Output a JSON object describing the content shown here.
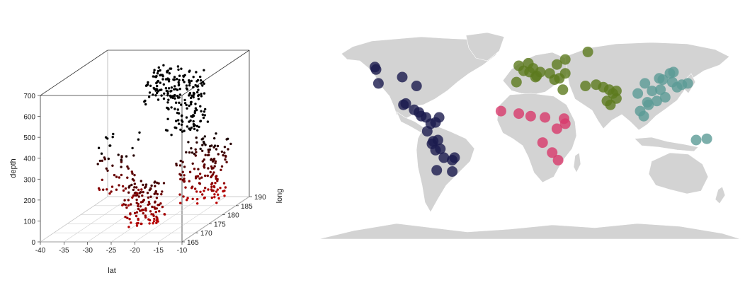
{
  "chart_data": [
    {
      "type": "scatter",
      "projection": "3d",
      "xlabel": "lat",
      "ylabel": "long",
      "zlabel": "depth",
      "xlim": [
        -40,
        -10
      ],
      "ylim": [
        165,
        190
      ],
      "zlim": [
        0,
        700
      ],
      "x_ticks": [
        "-40",
        "-35",
        "-30",
        "-25",
        "-20",
        "-15",
        "-10"
      ],
      "y_ticks": [
        "165",
        "170",
        "175",
        "180",
        "185",
        "190"
      ],
      "z_ticks": [
        "0",
        "100",
        "200",
        "300",
        "400",
        "500",
        "600",
        "700"
      ],
      "grid": "floor",
      "color_scale": {
        "shallow": "#d40000",
        "deep": "#000000"
      },
      "clusters": [
        {
          "lat": [
            -26,
            -20
          ],
          "long": [
            178,
            183
          ],
          "depth": [
            540,
            690
          ],
          "n": 80
        },
        {
          "lat": [
            -23,
            -16
          ],
          "long": [
            180,
            186
          ],
          "depth": [
            380,
            650
          ],
          "n": 140
        },
        {
          "lat": [
            -20,
            -12
          ],
          "long": [
            180,
            188
          ],
          "depth": [
            40,
            330
          ],
          "n": 150
        },
        {
          "lat": [
            -24,
            -17
          ],
          "long": [
            167,
            172
          ],
          "depth": [
            40,
            250
          ],
          "n": 120
        },
        {
          "lat": [
            -35,
            -27
          ],
          "long": [
            175,
            181
          ],
          "depth": [
            60,
            400
          ],
          "n": 45
        },
        {
          "lat": [
            -38,
            -30
          ],
          "long": [
            178,
            184
          ],
          "depth": [
            90,
            300
          ],
          "n": 15
        }
      ]
    },
    {
      "type": "map",
      "land_color": "#d3d3d3",
      "groups": [
        {
          "color": "#1a1a4e",
          "points": [
            [
              -123,
              49
            ],
            [
              -122,
              47
            ],
            [
              -100,
              41
            ],
            [
              -88,
              34
            ],
            [
              -120,
              36
            ],
            [
              -99,
              19
            ],
            [
              -97,
              20
            ],
            [
              -90,
              15
            ],
            [
              -86,
              13
            ],
            [
              -84,
              10
            ],
            [
              -80,
              9
            ],
            [
              -76,
              4
            ],
            [
              -79,
              -2
            ],
            [
              -72,
              5
            ],
            [
              -69,
              9
            ],
            [
              -74,
              -10
            ],
            [
              -72,
              -17
            ],
            [
              -68,
              -16
            ],
            [
              -65,
              -23
            ],
            [
              -58,
              -25
            ],
            [
              -56,
              -23
            ],
            [
              -71,
              -33
            ],
            [
              -58,
              -34
            ],
            [
              -75,
              -12
            ],
            [
              -70,
              -9
            ]
          ]
        },
        {
          "color": "#5c7a1e",
          "points": [
            [
              -2,
              50
            ],
            [
              2,
              46
            ],
            [
              7,
              45
            ],
            [
              13,
              42
            ],
            [
              16,
              45
            ],
            [
              10,
              48
            ],
            [
              30,
              51
            ],
            [
              37,
              55
            ],
            [
              32,
              40
            ],
            [
              28,
              39
            ],
            [
              56,
              61
            ],
            [
              35,
              31
            ],
            [
              54,
              34
            ],
            [
              63,
              35
            ],
            [
              69,
              33
            ],
            [
              74,
              31
            ],
            [
              77,
              28
            ],
            [
              72,
              22
            ],
            [
              75,
              19
            ],
            [
              80,
              24
            ],
            [
              6,
              52
            ],
            [
              -4,
              37
            ],
            [
              24,
              44
            ],
            [
              12,
              41
            ],
            [
              80,
              30
            ],
            [
              37,
              44
            ]
          ]
        },
        {
          "color": "#d83a6c",
          "points": [
            [
              -17,
              14
            ],
            [
              -2,
              12
            ],
            [
              8,
              10
            ],
            [
              20,
              9
            ],
            [
              36,
              8
            ],
            [
              30,
              0
            ],
            [
              18,
              -11
            ],
            [
              26,
              -19
            ],
            [
              31,
              -25
            ],
            [
              37,
              4
            ]
          ]
        },
        {
          "color": "#5b9b96",
          "points": [
            [
              104,
              36
            ],
            [
              110,
              30
            ],
            [
              119,
              39
            ],
            [
              116,
              40
            ],
            [
              127,
              37
            ],
            [
              135,
              35
            ],
            [
              140,
              36
            ],
            [
              114,
              22
            ],
            [
              106,
              21
            ],
            [
              100,
              14
            ],
            [
              107,
              19
            ],
            [
              121,
              25
            ],
            [
              117,
              31
            ],
            [
              98,
              28
            ],
            [
              147,
              -9
            ],
            [
              156,
              -8
            ],
            [
              128,
              45
            ],
            [
              131,
              33
            ],
            [
              103,
              10
            ],
            [
              125,
              44
            ]
          ]
        }
      ]
    }
  ]
}
